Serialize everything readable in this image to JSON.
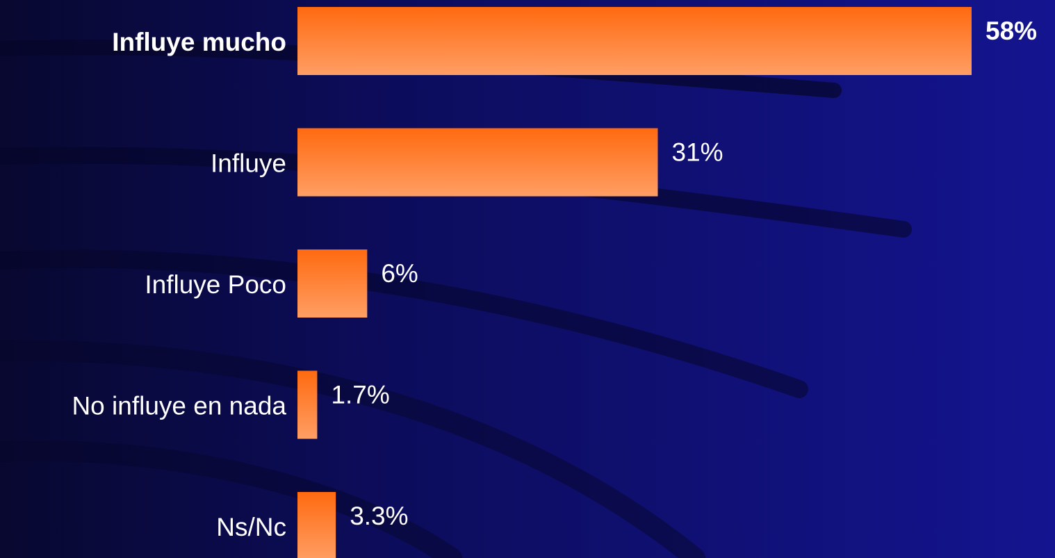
{
  "chart_data": {
    "type": "hbar",
    "categories": [
      "Influye mucho",
      "Influye",
      "Influye Poco",
      "No influye en nada",
      "Ns/Nc"
    ],
    "values": [
      58,
      31,
      6,
      1.7,
      3.3
    ],
    "value_labels": [
      "58%",
      "31%",
      "6%",
      "1.7%",
      "3.3%"
    ],
    "emphasis": [
      true,
      false,
      false,
      false,
      false
    ],
    "color": "#ff6a10"
  }
}
